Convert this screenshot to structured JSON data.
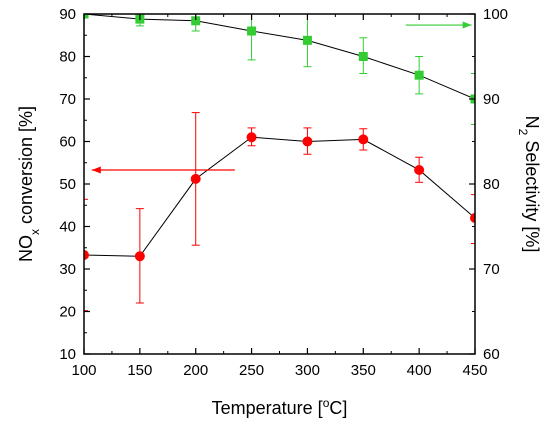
{
  "chart_data": {
    "type": "line",
    "x": [
      100,
      150,
      200,
      250,
      300,
      350,
      400,
      450
    ],
    "xlim": [
      100,
      450
    ],
    "ylim_left": [
      10,
      90
    ],
    "ylim_right": [
      60,
      100
    ],
    "x_ticks": [
      "100",
      "150",
      "200",
      "250",
      "300",
      "350",
      "400",
      "450"
    ],
    "y_ticks_left": [
      "10",
      "20",
      "30",
      "40",
      "50",
      "60",
      "70",
      "80",
      "90"
    ],
    "y_ticks_right": [
      "60",
      "70",
      "80",
      "90",
      "100"
    ],
    "xlabel": {
      "main": "Temperature [",
      "sup": "o",
      "tail": "C]"
    },
    "ylabel_left": {
      "main": "NO",
      "sub": "x",
      "tail": " conversion [%]"
    },
    "ylabel_right": {
      "main": "N",
      "sub": "2",
      "tail": " Selectivity [%]"
    },
    "grid": false,
    "series": [
      {
        "axis": "left",
        "color": "#ff0000",
        "line_color": "#000000",
        "marker": "circle",
        "arrow_direction": "left",
        "values": [
          33.3,
          33.0,
          51.2,
          61.0,
          60.0,
          60.5,
          53.3,
          42.0
        ],
        "error_low": [
          20.2,
          22.0,
          35.6,
          59.0,
          57.0,
          58.0,
          50.4,
          36.0
        ],
        "error_high": [
          46.4,
          44.2,
          66.8,
          63.2,
          63.2,
          63.0,
          56.3,
          47.5
        ]
      },
      {
        "axis": "right",
        "color": "#33cc33",
        "line_color": "#000000",
        "marker": "square",
        "arrow_direction": "right",
        "values": [
          100.0,
          99.4,
          99.2,
          98.0,
          96.9,
          95.0,
          92.8,
          90.0
        ],
        "error_low": [
          99.6,
          98.6,
          98.0,
          94.6,
          93.8,
          93.0,
          90.6,
          87.0
        ],
        "error_high": [
          100.0,
          100.0,
          100.0,
          100.0,
          100.0,
          97.2,
          95.0,
          93.0
        ]
      }
    ]
  }
}
